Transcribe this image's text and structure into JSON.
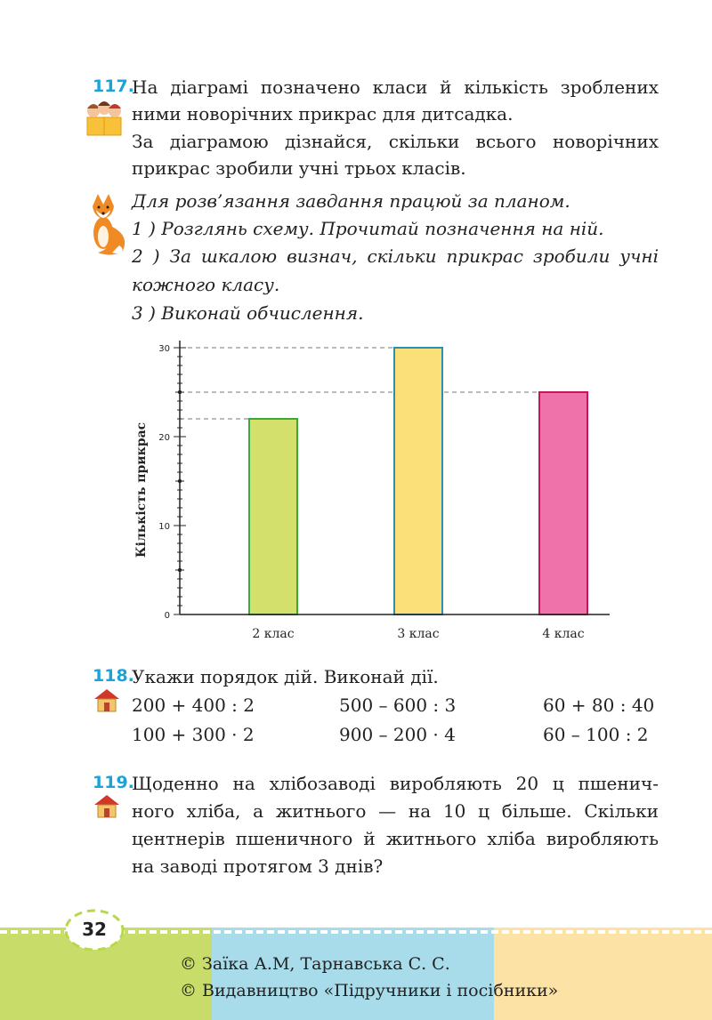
{
  "task117": {
    "number": "117.",
    "lines": [
      "На діаграмі позначено класи й кількість зроблених",
      "ними новорічних прикрас для дитсадка.",
      "За діаграмою дізнайся, скільки всього новорічних",
      "прикрас зробили учні трьох класів."
    ],
    "plan": [
      "Для розв’язання завдання працюй за планом.",
      "1 ) Розглянь схему. Прочитай позначення на ній.",
      "2 ) За шкалою визнач, скільки прикрас зробили учні",
      "кожного класу.",
      "3 ) Виконай обчислення."
    ]
  },
  "chart_data": {
    "type": "bar",
    "categories": [
      "2 клас",
      "3 клас",
      "4 клас"
    ],
    "values": [
      22,
      30,
      25
    ],
    "colors": [
      "#d4e06c",
      "#fbe07a",
      "#ef72ab"
    ],
    "borders": [
      "#3aa83a",
      "#2a8fb0",
      "#c2185b"
    ],
    "ylabel": "Кількість прикрас",
    "ylim": [
      0,
      30
    ],
    "yticks": [
      "0",
      "10",
      "20",
      "30"
    ],
    "guide_lines_at": [
      22,
      25,
      30
    ]
  },
  "task118": {
    "number": "118.",
    "text": "Укажи порядок дій. Виконай дії.",
    "expressions": [
      [
        "200 + 400 : 2",
        "500 – 600 : 3",
        "60 + 80 : 40"
      ],
      [
        "100 + 300 · 2",
        "900 – 200 · 4",
        "60 – 100 : 2"
      ]
    ]
  },
  "task119": {
    "number": "119.",
    "lines": [
      "Щоденно на хлібозаводі виробляють 20 ц пшенич-",
      "ного хліба, а житнього — на 10 ц більше. Скільки",
      "центнерів пшеничного й житнього хліба виробляють",
      "на заводі протягом 3 днів?"
    ]
  },
  "footer": {
    "page_number": "32",
    "copyright1": "© Заїка А.М, Тарнавська С. С.",
    "copyright2": "© Видавництво «Підручники і посібники»",
    "colors": [
      "#c8dc6a",
      "#a9dcea",
      "#fde2a6"
    ]
  }
}
